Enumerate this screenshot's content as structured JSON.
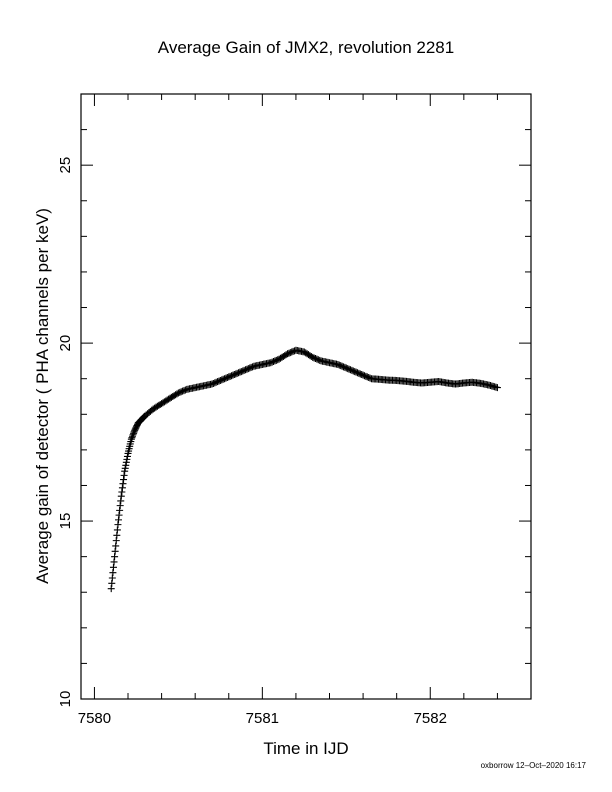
{
  "chart_data": {
    "type": "scatter",
    "title": "Average Gain of JMX2, revolution 2281",
    "xlabel": "Time in IJD",
    "ylabel": "Average gain of detector ( PHA channels per keV)",
    "xlim": [
      7579.92,
      7582.6
    ],
    "ylim": [
      10,
      27
    ],
    "xticks": [
      7580,
      7581,
      7582
    ],
    "yticks": [
      10,
      15,
      20,
      25
    ],
    "xtick_labels": [
      "7580",
      "7581",
      "7582"
    ],
    "ytick_labels": [
      "10",
      "15",
      "20",
      "25"
    ],
    "marker": "plus",
    "grid": false,
    "legend": "none",
    "color": "#000000",
    "series": [
      {
        "x": [
          7580.1,
          7580.12,
          7580.14,
          7580.16,
          7580.18,
          7580.2,
          7580.22,
          7580.24,
          7580.26,
          7580.28,
          7580.3,
          7580.35,
          7580.4,
          7580.45,
          7580.5,
          7580.55,
          7580.6,
          7580.65,
          7580.7,
          7580.75,
          7580.8,
          7580.85,
          7580.9,
          7580.95,
          7581.0,
          7581.05,
          7581.1,
          7581.15,
          7581.2,
          7581.25,
          7581.3,
          7581.35,
          7581.4,
          7581.45,
          7581.5,
          7581.55,
          7581.6,
          7581.65,
          7581.7,
          7581.75,
          7581.8,
          7581.85,
          7581.9,
          7581.95,
          7582.0,
          7582.05,
          7582.1,
          7582.15,
          7582.2,
          7582.25,
          7582.3,
          7582.35,
          7582.4
        ],
        "y": [
          13.1,
          14.0,
          14.9,
          15.7,
          16.4,
          16.9,
          17.3,
          17.55,
          17.75,
          17.85,
          17.95,
          18.15,
          18.3,
          18.45,
          18.6,
          18.7,
          18.75,
          18.8,
          18.85,
          18.95,
          19.05,
          19.15,
          19.25,
          19.35,
          19.4,
          19.45,
          19.55,
          19.7,
          19.8,
          19.75,
          19.6,
          19.5,
          19.45,
          19.4,
          19.3,
          19.2,
          19.1,
          19.0,
          18.98,
          18.96,
          18.95,
          18.93,
          18.9,
          18.88,
          18.9,
          18.92,
          18.88,
          18.85,
          18.88,
          18.9,
          18.87,
          18.82,
          18.75
        ]
      }
    ]
  },
  "footer": {
    "stamp": "oxborrow 12–Oct–2020 16:17"
  }
}
